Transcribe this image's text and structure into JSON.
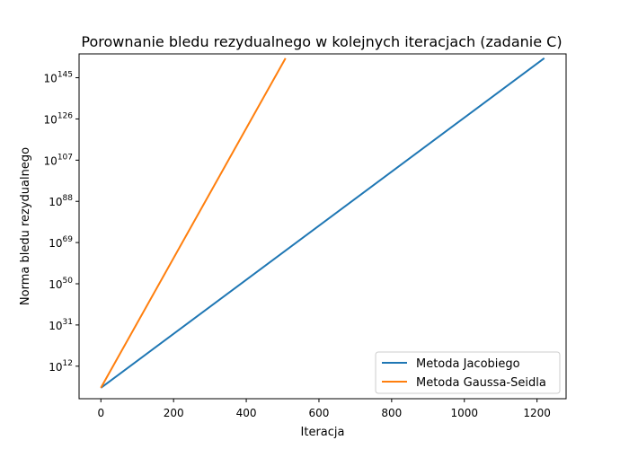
{
  "chart_data": {
    "type": "line",
    "title": "Porownanie bledu rezydualnego w kolejnych iteracjach (zadanie C)",
    "xlabel": "Iteracja",
    "ylabel": "Norma bledu rezydualnego",
    "xlim": [
      -60,
      1280
    ],
    "ylog10lim": [
      -3,
      156
    ],
    "yscale": "log",
    "x_ticks": [
      0,
      200,
      400,
      600,
      800,
      1000,
      1200
    ],
    "y_ticks": [
      {
        "exp": 12,
        "base": "10",
        "sup": "12"
      },
      {
        "exp": 31,
        "base": "10",
        "sup": "31"
      },
      {
        "exp": 50,
        "base": "10",
        "sup": "50"
      },
      {
        "exp": 69,
        "base": "10",
        "sup": "69"
      },
      {
        "exp": 88,
        "base": "10",
        "sup": "88"
      },
      {
        "exp": 107,
        "base": "10",
        "sup": "107"
      },
      {
        "exp": 126,
        "base": "10",
        "sup": "126"
      },
      {
        "exp": 145,
        "base": "10",
        "sup": "145"
      }
    ],
    "grid": false,
    "legend_position": "bottom-right",
    "series": [
      {
        "name": "Metoda Jacobiego",
        "color": "#1f77b4",
        "points": [
          [
            0,
            100.0
          ],
          [
            1220,
            1e+154
          ]
        ]
      },
      {
        "name": "Metoda Gaussa-Seidla",
        "color": "#ff7f0e",
        "points": [
          [
            0,
            100.0
          ],
          [
            508,
            1e+154
          ]
        ]
      }
    ]
  }
}
